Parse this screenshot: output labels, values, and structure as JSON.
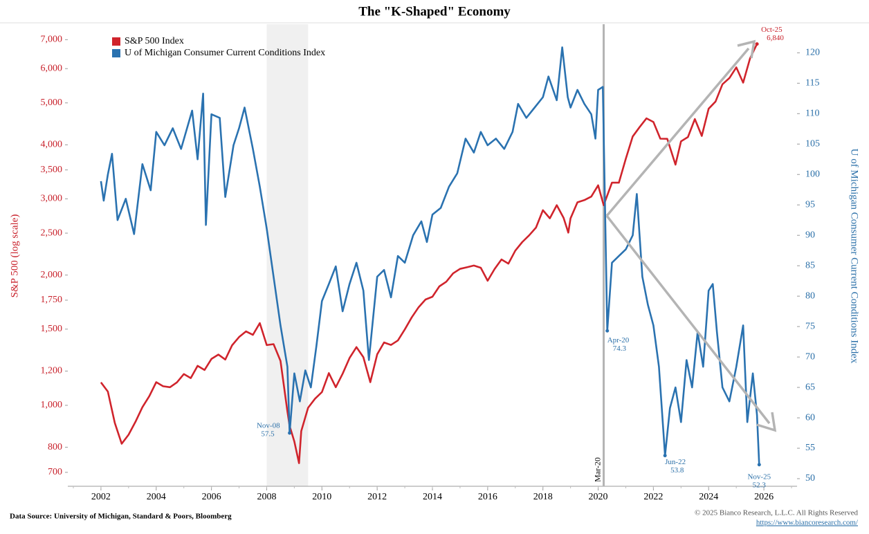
{
  "chart_data": {
    "type": "line",
    "title": "The \"K-Shaped\" Economy",
    "y_label": "S&P 500 (log scale)",
    "y2_label": "U of Michigan Consumer Current Conditions Index",
    "source": "Data Source: University of Michigan, Standard & Poors, Bloomberg",
    "copyright": "© 2025 Bianco Research, L.L.C. All Rights Reserved",
    "url": "https://www.biancoresearch.com/",
    "log_y": true,
    "legend": "top-left",
    "xlim": [
      2000.8,
      2027.2
    ],
    "xticks": [
      2002,
      2004,
      2006,
      2008,
      2010,
      2012,
      2014,
      2016,
      2018,
      2020,
      2022,
      2024,
      2026
    ],
    "ylim": [
      650,
      7600
    ],
    "yticks": [
      700,
      800,
      {
        "value": 1000,
        "label": "1,000"
      },
      {
        "value": 1200,
        "label": "1,200"
      },
      {
        "value": 1500,
        "label": "1,500"
      },
      {
        "value": 1750,
        "label": "1,750"
      },
      {
        "value": 2000,
        "label": "2,000"
      },
      {
        "value": 2500,
        "label": "2,500"
      },
      {
        "value": 3000,
        "label": "3,000"
      },
      {
        "value": 3500,
        "label": "3,500"
      },
      {
        "value": 4000,
        "label": "4,000"
      },
      {
        "value": 5000,
        "label": "5,000"
      },
      {
        "value": 6000,
        "label": "6,000"
      },
      {
        "value": 7000,
        "label": "7,000"
      }
    ],
    "y2lim": [
      48.75,
      124.7
    ],
    "y2ticks": [
      50,
      55,
      60,
      65,
      70,
      75,
      80,
      85,
      90,
      95,
      100,
      105,
      110,
      115,
      120
    ],
    "shade": [
      2008.0,
      2009.5
    ],
    "vline": {
      "x": 2020.2,
      "label": "Mar-20"
    },
    "series": [
      {
        "name": "S&P 500 Index",
        "color": "#d0242c",
        "axis": "y",
        "x": [
          2002.0,
          2002.25,
          2002.5,
          2002.75,
          2003.0,
          2003.25,
          2003.5,
          2003.75,
          2004.0,
          2004.25,
          2004.5,
          2004.75,
          2005.0,
          2005.25,
          2005.5,
          2005.75,
          2006.0,
          2006.25,
          2006.5,
          2006.75,
          2007.0,
          2007.25,
          2007.5,
          2007.75,
          2008.0,
          2008.25,
          2008.5,
          2008.75,
          2008.83,
          2009.0,
          2009.17,
          2009.25,
          2009.5,
          2009.75,
          2010.0,
          2010.25,
          2010.5,
          2010.75,
          2011.0,
          2011.25,
          2011.5,
          2011.75,
          2012.0,
          2012.25,
          2012.5,
          2012.75,
          2013.0,
          2013.25,
          2013.5,
          2013.75,
          2014.0,
          2014.25,
          2014.5,
          2014.75,
          2015.0,
          2015.25,
          2015.5,
          2015.75,
          2016.0,
          2016.25,
          2016.5,
          2016.75,
          2017.0,
          2017.25,
          2017.5,
          2017.75,
          2018.0,
          2018.25,
          2018.5,
          2018.75,
          2018.92,
          2019.0,
          2019.25,
          2019.5,
          2019.75,
          2020.0,
          2020.2,
          2020.5,
          2020.75,
          2021.0,
          2021.25,
          2021.5,
          2021.75,
          2022.0,
          2022.25,
          2022.5,
          2022.8,
          2023.0,
          2023.25,
          2023.5,
          2023.75,
          2024.0,
          2024.25,
          2024.5,
          2024.75,
          2025.0,
          2025.25,
          2025.5,
          2025.75
        ],
        "values": [
          1130,
          1076,
          911,
          815,
          855,
          916,
          990,
          1050,
          1131,
          1107,
          1101,
          1130,
          1181,
          1156,
          1234,
          1207,
          1280,
          1310,
          1276,
          1377,
          1438,
          1482,
          1455,
          1549,
          1378,
          1385,
          1267,
          968,
          896,
          825,
          735,
          872,
          987,
          1036,
          1073,
          1187,
          1101,
          1183,
          1286,
          1363,
          1292,
          1131,
          1312,
          1397,
          1379,
          1412,
          1498,
          1597,
          1685,
          1756,
          1782,
          1883,
          1930,
          2018,
          2067,
          2085,
          2104,
          2079,
          1940,
          2065,
          2173,
          2126,
          2278,
          2384,
          2470,
          2575,
          2824,
          2705,
          2901,
          2711,
          2507,
          2704,
          2945,
          2980,
          3037,
          3225,
          2900,
          3271,
          3270,
          3714,
          4181,
          4395,
          4605,
          4516,
          4132,
          4130,
          3600,
          4076,
          4169,
          4589,
          4194,
          4846,
          5036,
          5522,
          5705,
          6040,
          5569,
          6339,
          6840
        ]
      },
      {
        "name": "U of Michigan Consumer Current Conditions Index",
        "color": "#2a72b0",
        "axis": "y2",
        "x": [
          2002.0,
          2002.1,
          2002.25,
          2002.4,
          2002.6,
          2002.9,
          2003.2,
          2003.5,
          2003.8,
          2004.0,
          2004.3,
          2004.6,
          2004.9,
          2005.3,
          2005.5,
          2005.7,
          2005.8,
          2006.0,
          2006.3,
          2006.5,
          2006.8,
          2007.0,
          2007.2,
          2007.5,
          2007.75,
          2008.0,
          2008.25,
          2008.5,
          2008.75,
          2008.83,
          2009.0,
          2009.2,
          2009.4,
          2009.6,
          2009.8,
          2010.0,
          2010.25,
          2010.5,
          2010.75,
          2011.0,
          2011.25,
          2011.5,
          2011.7,
          2012.0,
          2012.25,
          2012.5,
          2012.75,
          2013.0,
          2013.3,
          2013.6,
          2013.8,
          2014.0,
          2014.3,
          2014.6,
          2014.9,
          2015.2,
          2015.5,
          2015.75,
          2016.0,
          2016.3,
          2016.6,
          2016.9,
          2017.1,
          2017.4,
          2017.7,
          2018.0,
          2018.2,
          2018.5,
          2018.7,
          2018.9,
          2019.0,
          2019.25,
          2019.5,
          2019.75,
          2019.9,
          2020.0,
          2020.17,
          2020.33,
          2020.5,
          2020.75,
          2021.0,
          2021.25,
          2021.4,
          2021.6,
          2021.8,
          2022.0,
          2022.2,
          2022.42,
          2022.6,
          2022.8,
          2023.0,
          2023.2,
          2023.4,
          2023.6,
          2023.8,
          2024.0,
          2024.15,
          2024.3,
          2024.5,
          2024.75,
          2025.0,
          2025.25,
          2025.4,
          2025.6,
          2025.75,
          2025.83
        ],
        "values": [
          98.9,
          95.7,
          100,
          103.4,
          92.5,
          96,
          90.2,
          101.7,
          97.4,
          107,
          104.8,
          107.6,
          104.2,
          110.5,
          102.5,
          113.3,
          91.7,
          109.9,
          109.3,
          96.3,
          104.8,
          107.6,
          111,
          104.2,
          98,
          91.1,
          83.2,
          75.2,
          68.4,
          57.5,
          67.3,
          62.7,
          67.8,
          65,
          71.8,
          79.2,
          82,
          84.9,
          77.5,
          82,
          85.5,
          80.9,
          69.5,
          83.2,
          84.3,
          79.8,
          86.6,
          85.5,
          90,
          92.3,
          88.9,
          93.4,
          94.5,
          98,
          100.2,
          105.9,
          103.6,
          107,
          104.8,
          105.9,
          104.2,
          107,
          111.6,
          109.3,
          111,
          112.7,
          116.1,
          112.2,
          120.9,
          112.7,
          111,
          113.9,
          111.6,
          109.9,
          105.9,
          113.9,
          114.4,
          74.3,
          85.5,
          86.6,
          87.7,
          90,
          96.8,
          83.2,
          78.6,
          75.2,
          68.4,
          53.8,
          61.6,
          65,
          59.3,
          69.5,
          65,
          74.1,
          68.4,
          80.9,
          82,
          74.1,
          65,
          62.7,
          68.4,
          75.2,
          59.3,
          67.3,
          60.5,
          52.3
        ]
      }
    ],
    "annotations": [
      {
        "date": "Oct-25",
        "x": 2025.75,
        "value": 6840,
        "value_label": "6,840",
        "axis": "y"
      },
      {
        "date": "Nov-08",
        "x": 2008.83,
        "value": 57.5,
        "axis": "y2"
      },
      {
        "date": "Apr-20",
        "x": 2020.33,
        "value": 74.3,
        "axis": "y2"
      },
      {
        "date": "Jun-22",
        "x": 2022.42,
        "value": 53.8,
        "axis": "y2"
      },
      {
        "date": "Nov-25",
        "x": 2025.83,
        "value": 52.3,
        "axis": "y2"
      }
    ]
  }
}
